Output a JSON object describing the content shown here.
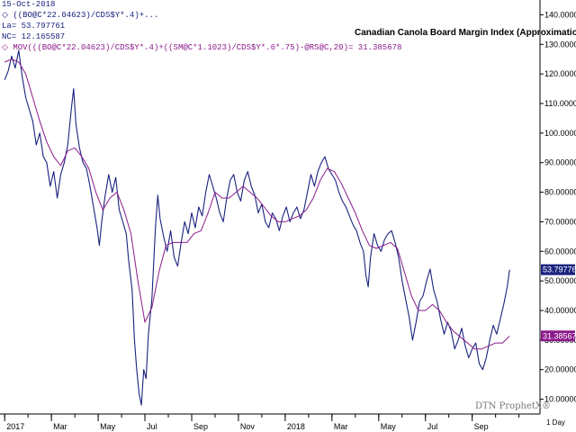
{
  "header": {
    "date": "15-Oct-2018",
    "series1_formula": "((BO@C*22.04623)/CDS$Y*.4)+...",
    "last_label": "La= 53.797761",
    "change_label": "NC= 12.165587",
    "series2_formula": "MOV(((BO@C*22.04623)/CDS$Y*.4)+((SM@C*1.1023)/CDS$Y*.6*.75)-@RS@C,20)= 31.385678",
    "bullet": "◇"
  },
  "footer": {
    "watermark": "DTN ProphetX®",
    "period": "1 Day"
  },
  "chart_data": {
    "type": "line",
    "title": "Canadian Canola Board Margin Index (Approximation)",
    "xlabel": "",
    "ylabel": "",
    "ylim": [
      5,
      145
    ],
    "ytick_values": [
      10,
      20,
      30,
      40,
      50,
      60,
      70,
      80,
      90,
      100,
      110,
      120,
      130,
      140
    ],
    "ytick_labels": [
      "10.000000",
      "20.000000",
      "30.000000",
      "40.000000",
      "50.000000",
      "60.000000",
      "70.000000",
      "80.000000",
      "90.000000",
      "100.000000",
      "110.000000",
      "120.000000",
      "130.000000",
      "140.000000"
    ],
    "xticks": [
      {
        "label": "2017",
        "t": 0
      },
      {
        "label": "Mar",
        "t": 2
      },
      {
        "label": "May",
        "t": 4
      },
      {
        "label": "Jul",
        "t": 6
      },
      {
        "label": "Sep",
        "t": 8
      },
      {
        "label": "Nov",
        "t": 10
      },
      {
        "label": "2018",
        "t": 12
      },
      {
        "label": "Mar",
        "t": 14
      },
      {
        "label": "May",
        "t": 16
      },
      {
        "label": "Jul",
        "t": 18
      },
      {
        "label": "Sep",
        "t": 20
      }
    ],
    "x_units": "months since Jan 2017",
    "series": [
      {
        "name": "",
        "color": "#1a237e",
        "last_value": "53.797761",
        "points": [
          [
            0.0,
            118
          ],
          [
            0.15,
            121
          ],
          [
            0.3,
            126
          ],
          [
            0.45,
            122
          ],
          [
            0.6,
            128
          ],
          [
            0.75,
            119
          ],
          [
            0.9,
            112
          ],
          [
            1.05,
            108
          ],
          [
            1.2,
            104
          ],
          [
            1.35,
            96
          ],
          [
            1.5,
            100
          ],
          [
            1.65,
            92
          ],
          [
            1.8,
            90
          ],
          [
            1.95,
            82
          ],
          [
            2.1,
            87
          ],
          [
            2.25,
            78
          ],
          [
            2.4,
            86
          ],
          [
            2.55,
            90
          ],
          [
            2.7,
            96
          ],
          [
            2.85,
            108
          ],
          [
            2.95,
            115
          ],
          [
            3.05,
            103
          ],
          [
            3.2,
            95
          ],
          [
            3.35,
            90
          ],
          [
            3.5,
            88
          ],
          [
            3.65,
            82
          ],
          [
            3.8,
            75
          ],
          [
            3.95,
            68
          ],
          [
            4.05,
            62
          ],
          [
            4.15,
            70
          ],
          [
            4.3,
            79
          ],
          [
            4.45,
            86
          ],
          [
            4.6,
            80
          ],
          [
            4.75,
            85
          ],
          [
            4.9,
            74
          ],
          [
            5.05,
            70
          ],
          [
            5.2,
            66
          ],
          [
            5.3,
            57
          ],
          [
            5.45,
            47
          ],
          [
            5.55,
            30
          ],
          [
            5.65,
            20
          ],
          [
            5.75,
            12
          ],
          [
            5.85,
            8
          ],
          [
            5.95,
            20
          ],
          [
            6.05,
            17
          ],
          [
            6.15,
            32
          ],
          [
            6.3,
            44
          ],
          [
            6.45,
            68
          ],
          [
            6.55,
            79
          ],
          [
            6.65,
            71
          ],
          [
            6.8,
            65
          ],
          [
            6.95,
            60
          ],
          [
            7.1,
            67
          ],
          [
            7.25,
            58
          ],
          [
            7.4,
            55
          ],
          [
            7.55,
            63
          ],
          [
            7.7,
            70
          ],
          [
            7.85,
            66
          ],
          [
            8.0,
            73
          ],
          [
            8.15,
            68
          ],
          [
            8.3,
            75
          ],
          [
            8.45,
            72
          ],
          [
            8.6,
            80
          ],
          [
            8.75,
            86
          ],
          [
            8.9,
            82
          ],
          [
            9.05,
            78
          ],
          [
            9.2,
            73
          ],
          [
            9.35,
            70
          ],
          [
            9.5,
            78
          ],
          [
            9.65,
            84
          ],
          [
            9.8,
            86
          ],
          [
            9.95,
            80
          ],
          [
            10.1,
            77
          ],
          [
            10.25,
            84
          ],
          [
            10.4,
            87
          ],
          [
            10.55,
            82
          ],
          [
            10.7,
            79
          ],
          [
            10.85,
            73
          ],
          [
            11.0,
            76
          ],
          [
            11.15,
            70
          ],
          [
            11.3,
            68
          ],
          [
            11.45,
            73
          ],
          [
            11.6,
            71
          ],
          [
            11.75,
            67
          ],
          [
            11.9,
            72
          ],
          [
            12.05,
            75
          ],
          [
            12.2,
            70
          ],
          [
            12.35,
            73
          ],
          [
            12.5,
            75
          ],
          [
            12.65,
            71
          ],
          [
            12.8,
            74
          ],
          [
            12.95,
            80
          ],
          [
            13.1,
            86
          ],
          [
            13.25,
            82
          ],
          [
            13.4,
            87
          ],
          [
            13.55,
            90
          ],
          [
            13.7,
            92
          ],
          [
            13.85,
            88
          ],
          [
            14.0,
            86
          ],
          [
            14.15,
            84
          ],
          [
            14.3,
            80
          ],
          [
            14.45,
            77
          ],
          [
            14.6,
            75
          ],
          [
            14.75,
            72
          ],
          [
            14.9,
            69
          ],
          [
            15.05,
            67
          ],
          [
            15.2,
            63
          ],
          [
            15.35,
            60
          ],
          [
            15.45,
            52
          ],
          [
            15.55,
            48
          ],
          [
            15.65,
            58
          ],
          [
            15.8,
            66
          ],
          [
            15.95,
            62
          ],
          [
            16.1,
            60
          ],
          [
            16.25,
            64
          ],
          [
            16.4,
            66
          ],
          [
            16.55,
            67
          ],
          [
            16.7,
            63
          ],
          [
            16.85,
            58
          ],
          [
            17.0,
            50
          ],
          [
            17.15,
            44
          ],
          [
            17.3,
            38
          ],
          [
            17.45,
            30
          ],
          [
            17.6,
            36
          ],
          [
            17.75,
            43
          ],
          [
            17.9,
            45
          ],
          [
            18.05,
            50
          ],
          [
            18.2,
            54
          ],
          [
            18.35,
            47
          ],
          [
            18.5,
            43
          ],
          [
            18.65,
            37
          ],
          [
            18.8,
            32
          ],
          [
            18.95,
            36
          ],
          [
            19.1,
            33
          ],
          [
            19.25,
            27
          ],
          [
            19.4,
            30
          ],
          [
            19.55,
            34
          ],
          [
            19.7,
            28
          ],
          [
            19.85,
            24
          ],
          [
            20.0,
            27
          ],
          [
            20.15,
            29
          ],
          [
            20.3,
            22
          ],
          [
            20.45,
            20
          ],
          [
            20.6,
            24
          ],
          [
            20.75,
            30
          ],
          [
            20.9,
            35
          ],
          [
            21.05,
            32
          ],
          [
            21.2,
            37
          ],
          [
            21.35,
            42
          ],
          [
            21.5,
            48
          ],
          [
            21.6,
            53.8
          ]
        ]
      },
      {
        "name": "",
        "color": "#8b1a8b",
        "last_value": "31.385678",
        "points": [
          [
            0.0,
            124
          ],
          [
            0.3,
            125
          ],
          [
            0.6,
            124
          ],
          [
            0.9,
            120
          ],
          [
            1.2,
            112
          ],
          [
            1.5,
            104
          ],
          [
            1.8,
            97
          ],
          [
            2.1,
            92
          ],
          [
            2.4,
            89
          ],
          [
            2.7,
            94
          ],
          [
            3.0,
            95
          ],
          [
            3.3,
            92
          ],
          [
            3.6,
            88
          ],
          [
            3.9,
            80
          ],
          [
            4.2,
            74
          ],
          [
            4.5,
            78
          ],
          [
            4.8,
            80
          ],
          [
            5.1,
            74
          ],
          [
            5.4,
            66
          ],
          [
            5.7,
            50
          ],
          [
            6.0,
            36
          ],
          [
            6.3,
            41
          ],
          [
            6.6,
            53
          ],
          [
            6.9,
            62
          ],
          [
            7.2,
            63
          ],
          [
            7.5,
            63
          ],
          [
            7.8,
            63
          ],
          [
            8.1,
            66
          ],
          [
            8.4,
            67
          ],
          [
            8.7,
            73
          ],
          [
            9.0,
            80
          ],
          [
            9.3,
            78
          ],
          [
            9.6,
            78
          ],
          [
            9.9,
            80
          ],
          [
            10.2,
            82
          ],
          [
            10.5,
            80
          ],
          [
            10.8,
            78
          ],
          [
            11.1,
            75
          ],
          [
            11.4,
            72
          ],
          [
            11.7,
            70
          ],
          [
            12.0,
            70
          ],
          [
            12.3,
            71
          ],
          [
            12.6,
            72
          ],
          [
            12.9,
            74
          ],
          [
            13.2,
            78
          ],
          [
            13.5,
            84
          ],
          [
            13.8,
            88
          ],
          [
            14.1,
            87
          ],
          [
            14.4,
            83
          ],
          [
            14.7,
            78
          ],
          [
            15.0,
            73
          ],
          [
            15.3,
            67
          ],
          [
            15.6,
            62
          ],
          [
            15.9,
            61
          ],
          [
            16.2,
            62
          ],
          [
            16.5,
            63
          ],
          [
            16.8,
            61
          ],
          [
            17.1,
            53
          ],
          [
            17.4,
            45
          ],
          [
            17.7,
            40
          ],
          [
            18.0,
            40
          ],
          [
            18.3,
            42
          ],
          [
            18.6,
            40
          ],
          [
            18.9,
            36
          ],
          [
            19.2,
            33
          ],
          [
            19.5,
            31
          ],
          [
            19.8,
            29
          ],
          [
            20.1,
            27
          ],
          [
            20.4,
            27
          ],
          [
            20.7,
            28
          ],
          [
            21.0,
            29
          ],
          [
            21.3,
            29
          ],
          [
            21.6,
            31.4
          ]
        ]
      }
    ]
  }
}
